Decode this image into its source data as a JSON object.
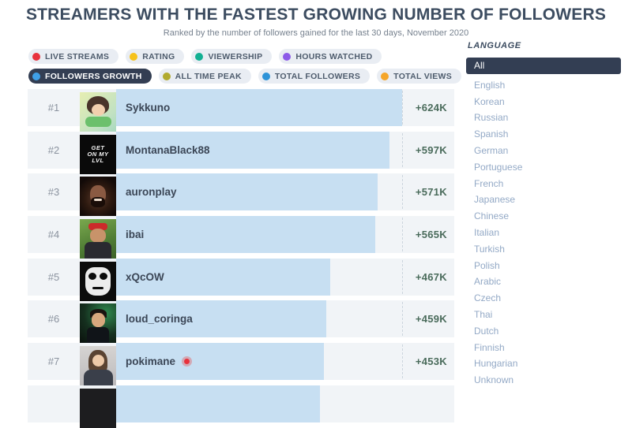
{
  "header": {
    "title": "STREAMERS WITH THE FASTEST GROWING NUMBER OF FOLLOWERS",
    "subtitle": "Ranked by the number of followers gained for the last 30 days, November 2020"
  },
  "filters": {
    "tabs": [
      {
        "label": "LIVE STREAMS",
        "color": "#e8323d",
        "active": false
      },
      {
        "label": "RATING",
        "color": "#f6c21b",
        "active": false
      },
      {
        "label": "VIEWERSHIP",
        "color": "#13b093",
        "active": false
      },
      {
        "label": "HOURS WATCHED",
        "color": "#8c5ae8",
        "active": false
      },
      {
        "label": "FOLLOWERS GROWTH",
        "color": "#3fa0e8",
        "active": true
      },
      {
        "label": "ALL TIME PEAK",
        "color": "#b1aa2f",
        "active": false
      },
      {
        "label": "TOTAL FOLLOWERS",
        "color": "#2d93d8",
        "active": false
      },
      {
        "label": "TOTAL VIEWS",
        "color": "#f5a62a",
        "active": false
      }
    ]
  },
  "language_panel": {
    "title": "LANGUAGE",
    "selected": "All",
    "options": [
      {
        "label": "All",
        "selected": true
      },
      {
        "label": "English",
        "selected": false
      },
      {
        "label": "Korean",
        "selected": false
      },
      {
        "label": "Russian",
        "selected": false
      },
      {
        "label": "Spanish",
        "selected": false
      },
      {
        "label": "German",
        "selected": false
      },
      {
        "label": "Portuguese",
        "selected": false
      },
      {
        "label": "French",
        "selected": false
      },
      {
        "label": "Japanese",
        "selected": false
      },
      {
        "label": "Chinese",
        "selected": false
      },
      {
        "label": "Italian",
        "selected": false
      },
      {
        "label": "Turkish",
        "selected": false
      },
      {
        "label": "Polish",
        "selected": false
      },
      {
        "label": "Arabic",
        "selected": false
      },
      {
        "label": "Czech",
        "selected": false
      },
      {
        "label": "Thai",
        "selected": false
      },
      {
        "label": "Dutch",
        "selected": false
      },
      {
        "label": "Finnish",
        "selected": false
      },
      {
        "label": "Hungarian",
        "selected": false
      },
      {
        "label": "Unknown",
        "selected": false
      }
    ]
  },
  "chart_data": {
    "type": "bar",
    "orientation": "horizontal",
    "title": "Streamers with the fastest growing number of followers",
    "period": "last 30 days, November 2020",
    "metric": "followers gained",
    "unit": "thousands of followers",
    "xlim_k": [
      0,
      624
    ],
    "max_value_k": 624,
    "categories": [
      "Sykkuno",
      "MontanaBlack88",
      "auronplay",
      "ibai",
      "xQcOW",
      "loud_coringa",
      "pokimane"
    ],
    "values_k": [
      624,
      597,
      571,
      565,
      467,
      459,
      453
    ],
    "value_labels": [
      "+624K",
      "+597K",
      "+571K",
      "+565K",
      "+467K",
      "+459K",
      "+453K"
    ],
    "bar_color": "#c7dff2",
    "value_color": "#4a6b5b",
    "rows": [
      {
        "rank": "#1",
        "name": "Sykkuno",
        "value_k": 624,
        "value_label": "+624K",
        "live": false,
        "avatar": "sykkuno"
      },
      {
        "rank": "#2",
        "name": "MontanaBlack88",
        "value_k": 597,
        "value_label": "+597K",
        "live": false,
        "avatar": "montanablack",
        "avatar_text": "GET\nON MY\nLVL"
      },
      {
        "rank": "#3",
        "name": "auronplay",
        "value_k": 571,
        "value_label": "+571K",
        "live": false,
        "avatar": "auronplay"
      },
      {
        "rank": "#4",
        "name": "ibai",
        "value_k": 565,
        "value_label": "+565K",
        "live": false,
        "avatar": "ibai"
      },
      {
        "rank": "#5",
        "name": "xQcOW",
        "value_k": 467,
        "value_label": "+467K",
        "live": false,
        "avatar": "xqcow"
      },
      {
        "rank": "#6",
        "name": "loud_coringa",
        "value_k": 459,
        "value_label": "+459K",
        "live": false,
        "avatar": "loudcoringa"
      },
      {
        "rank": "#7",
        "name": "pokimane",
        "value_k": 453,
        "value_label": "+453K",
        "live": true,
        "avatar": "pokimane"
      }
    ]
  }
}
